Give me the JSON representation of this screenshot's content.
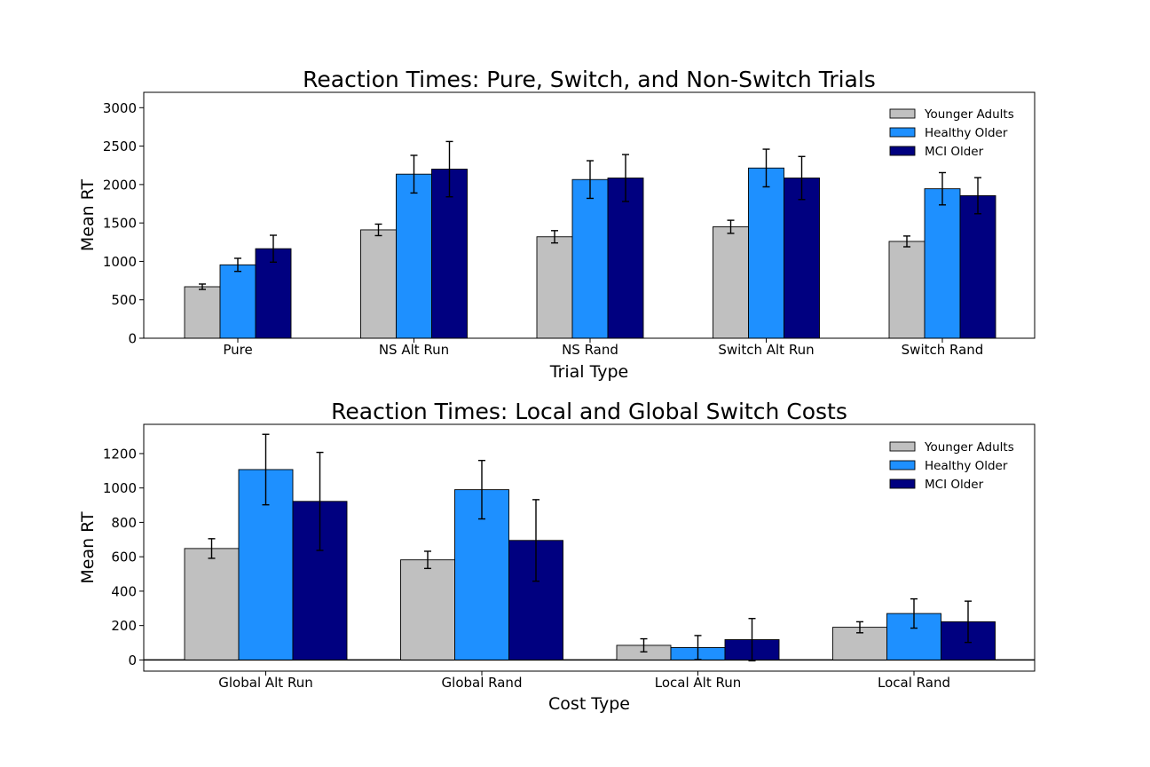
{
  "colors": {
    "Younger Adults": "#c0c0c0",
    "Healthy Older": "#1e90ff",
    "MCI Older": "#000080"
  },
  "chart_data": [
    {
      "type": "bar",
      "title": "Reaction Times: Pure, Switch, and Non-Switch Trials",
      "xlabel": "Trial Type",
      "ylabel": "Mean RT",
      "ylim": [
        0,
        3200
      ],
      "yticks": [
        0,
        500,
        1000,
        1500,
        2000,
        2500,
        3000
      ],
      "grid": false,
      "legend": "top-right",
      "categories": [
        "Pure",
        "NS Alt Run",
        "NS Rand",
        "Switch Alt Run",
        "Switch Rand"
      ],
      "series": [
        {
          "name": "Younger Adults",
          "values": [
            670,
            1410,
            1320,
            1450,
            1260
          ],
          "errors": [
            35,
            75,
            80,
            85,
            70
          ]
        },
        {
          "name": "Healthy Older",
          "values": [
            955,
            2135,
            2065,
            2215,
            1945
          ],
          "errors": [
            85,
            245,
            245,
            245,
            210
          ]
        },
        {
          "name": "MCI Older",
          "values": [
            1165,
            2200,
            2085,
            2085,
            1855
          ],
          "errors": [
            175,
            360,
            305,
            280,
            235
          ]
        }
      ]
    },
    {
      "type": "bar",
      "title": "Reaction Times: Local and Global Switch Costs",
      "xlabel": "Cost Type",
      "ylabel": "Mean RT",
      "ylim": [
        -65,
        1370
      ],
      "yticks": [
        0,
        200,
        400,
        600,
        800,
        1000,
        1200
      ],
      "grid": false,
      "legend": "top-right",
      "zero_line": true,
      "categories": [
        "Global Alt Run",
        "Global Rand",
        "Local Alt Run",
        "Local Rand"
      ],
      "series": [
        {
          "name": "Younger Adults",
          "values": [
            648,
            582,
            85,
            190
          ],
          "errors": [
            57,
            50,
            38,
            32
          ]
        },
        {
          "name": "Healthy Older",
          "values": [
            1107,
            990,
            72,
            270
          ],
          "errors": [
            205,
            170,
            70,
            85
          ]
        },
        {
          "name": "MCI Older",
          "values": [
            922,
            695,
            118,
            222
          ],
          "errors": [
            285,
            237,
            123,
            120
          ]
        }
      ]
    }
  ]
}
